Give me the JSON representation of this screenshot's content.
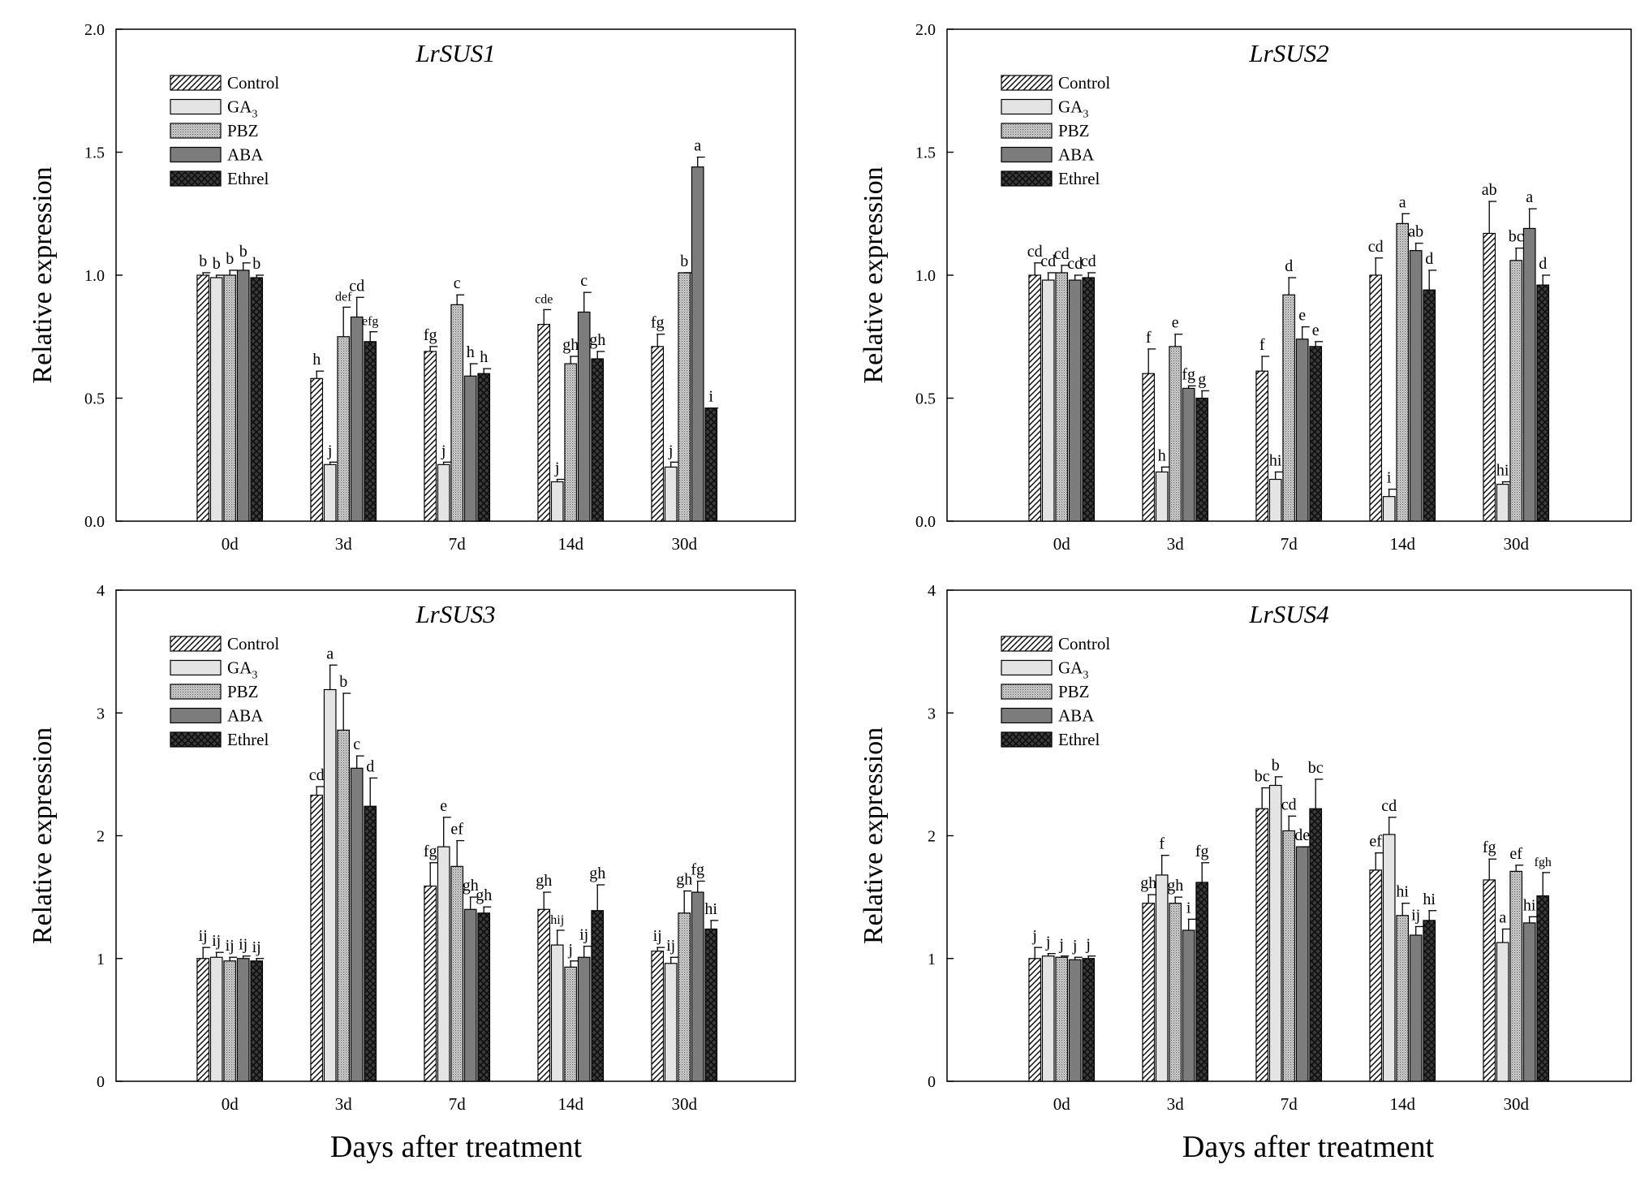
{
  "figure": {
    "xlabel": "Days after treatment",
    "ylabel": "Relative expression",
    "legend": [
      {
        "key": "control",
        "label": "Control",
        "sub": ""
      },
      {
        "key": "ga3",
        "label": "GA",
        "sub": "3"
      },
      {
        "key": "pbz",
        "label": "PBZ",
        "sub": ""
      },
      {
        "key": "aba",
        "label": "ABA",
        "sub": ""
      },
      {
        "key": "ethrel",
        "label": "Ethrel",
        "sub": ""
      }
    ]
  },
  "chart_data": [
    {
      "type": "bar",
      "title": "LrSUS1",
      "ylabel": "Relative expression",
      "xlabel": "Days after treatment",
      "ylim": [
        0,
        2.0
      ],
      "yticks": [
        "0.0",
        "0.5",
        "1.0",
        "1.5",
        "2.0"
      ],
      "categories": [
        "0d",
        "3d",
        "7d",
        "14d",
        "30d"
      ],
      "legend_position": "top-left",
      "series": [
        {
          "name": "Control",
          "values": [
            1.0,
            0.58,
            0.69,
            0.8,
            0.71
          ],
          "errors": [
            0.01,
            0.03,
            0.02,
            0.06,
            0.05
          ],
          "letters": [
            "b",
            "h",
            "fg",
            "cde",
            "fg"
          ]
        },
        {
          "name": "GA3",
          "values": [
            0.99,
            0.23,
            0.23,
            0.16,
            0.22
          ],
          "errors": [
            0.01,
            0.01,
            0.01,
            0.01,
            0.02
          ],
          "letters": [
            "b",
            "j",
            "j",
            "j",
            "j"
          ]
        },
        {
          "name": "PBZ",
          "values": [
            1.0,
            0.75,
            0.88,
            0.64,
            1.01
          ],
          "errors": [
            0.02,
            0.12,
            0.04,
            0.03,
            0.0
          ],
          "letters": [
            "b",
            "def",
            "c",
            "gh",
            "b"
          ]
        },
        {
          "name": "ABA",
          "values": [
            1.02,
            0.83,
            0.59,
            0.85,
            1.44
          ],
          "errors": [
            0.03,
            0.08,
            0.05,
            0.08,
            0.04
          ],
          "letters": [
            "b",
            "cd",
            "h",
            "c",
            "a"
          ]
        },
        {
          "name": "Ethrel",
          "values": [
            0.99,
            0.73,
            0.6,
            0.66,
            0.46
          ],
          "errors": [
            0.01,
            0.04,
            0.02,
            0.03,
            0.0
          ],
          "letters": [
            "b",
            "efg",
            "h",
            "gh",
            "i"
          ]
        }
      ]
    },
    {
      "type": "bar",
      "title": "LrSUS2",
      "ylabel": "Relative expression",
      "xlabel": "Days after treatment",
      "ylim": [
        0,
        2.0
      ],
      "yticks": [
        "0.0",
        "0.5",
        "1.0",
        "1.5",
        "2.0"
      ],
      "categories": [
        "0d",
        "3d",
        "7d",
        "14d",
        "30d"
      ],
      "legend_position": "top-left",
      "series": [
        {
          "name": "Control",
          "values": [
            1.0,
            0.6,
            0.61,
            1.0,
            1.17
          ],
          "errors": [
            0.05,
            0.1,
            0.06,
            0.07,
            0.13
          ],
          "letters": [
            "cd",
            "f",
            "f",
            "cd",
            "ab"
          ]
        },
        {
          "name": "GA3",
          "values": [
            0.98,
            0.2,
            0.17,
            0.1,
            0.15
          ],
          "errors": [
            0.03,
            0.02,
            0.03,
            0.03,
            0.01
          ],
          "letters": [
            "cd",
            "h",
            "hi",
            "i",
            "hi"
          ]
        },
        {
          "name": "PBZ",
          "values": [
            1.01,
            0.71,
            0.92,
            1.21,
            1.06
          ],
          "errors": [
            0.03,
            0.05,
            0.07,
            0.04,
            0.05
          ],
          "letters": [
            "cd",
            "e",
            "d",
            "a",
            "bc"
          ]
        },
        {
          "name": "ABA",
          "values": [
            0.98,
            0.54,
            0.74,
            1.1,
            1.19
          ],
          "errors": [
            0.02,
            0.01,
            0.05,
            0.03,
            0.08
          ],
          "letters": [
            "cd",
            "fg",
            "e",
            "ab",
            "a"
          ]
        },
        {
          "name": "Ethrel",
          "values": [
            0.99,
            0.5,
            0.71,
            0.94,
            0.96
          ],
          "errors": [
            0.02,
            0.03,
            0.02,
            0.08,
            0.04
          ],
          "letters": [
            "cd",
            "g",
            "e",
            "d",
            "d"
          ]
        }
      ]
    },
    {
      "type": "bar",
      "title": "LrSUS3",
      "ylabel": "Relative expression",
      "xlabel": "Days after treatment",
      "ylim": [
        0,
        4
      ],
      "yticks": [
        "0",
        "1",
        "2",
        "3",
        "4"
      ],
      "categories": [
        "0d",
        "3d",
        "7d",
        "14d",
        "30d"
      ],
      "legend_position": "top-left",
      "series": [
        {
          "name": "Control",
          "values": [
            1.0,
            2.33,
            1.59,
            1.4,
            1.06
          ],
          "errors": [
            0.09,
            0.07,
            0.19,
            0.14,
            0.03
          ],
          "letters": [
            "ij",
            "cd",
            "fg",
            "gh",
            "ij"
          ]
        },
        {
          "name": "GA3",
          "values": [
            1.01,
            3.19,
            1.91,
            1.11,
            0.96
          ],
          "errors": [
            0.04,
            0.2,
            0.24,
            0.12,
            0.05
          ],
          "letters": [
            "ij",
            "a",
            "e",
            "hij",
            "ij"
          ]
        },
        {
          "name": "PBZ",
          "values": [
            0.98,
            2.86,
            1.75,
            0.93,
            1.37
          ],
          "errors": [
            0.03,
            0.3,
            0.21,
            0.05,
            0.18
          ],
          "letters": [
            "ij",
            "b",
            "ef",
            "j",
            "gh"
          ]
        },
        {
          "name": "ABA",
          "values": [
            1.0,
            2.55,
            1.4,
            1.01,
            1.54
          ],
          "errors": [
            0.02,
            0.1,
            0.1,
            0.09,
            0.09
          ],
          "letters": [
            "ij",
            "c",
            "gh",
            "ij",
            "fg"
          ]
        },
        {
          "name": "Ethrel",
          "values": [
            0.98,
            2.24,
            1.37,
            1.39,
            1.24
          ],
          "errors": [
            0.02,
            0.23,
            0.05,
            0.21,
            0.07
          ],
          "letters": [
            "ij",
            "d",
            "gh",
            "gh",
            "hi"
          ]
        }
      ]
    },
    {
      "type": "bar",
      "title": "LrSUS4",
      "ylabel": "Relative expression",
      "xlabel": "Days after treatment",
      "ylim": [
        0,
        4
      ],
      "yticks": [
        "0",
        "1",
        "2",
        "3",
        "4"
      ],
      "categories": [
        "0d",
        "3d",
        "7d",
        "14d",
        "30d"
      ],
      "legend_position": "top-left",
      "series": [
        {
          "name": "Control",
          "values": [
            1.0,
            1.45,
            2.22,
            1.72,
            1.64
          ],
          "errors": [
            0.09,
            0.07,
            0.17,
            0.14,
            0.17
          ],
          "letters": [
            "j",
            "gh",
            "bc",
            "ef",
            "fg"
          ]
        },
        {
          "name": "GA3",
          "values": [
            1.02,
            1.68,
            2.41,
            2.01,
            1.13
          ],
          "errors": [
            0.02,
            0.16,
            0.07,
            0.14,
            0.11
          ],
          "letters": [
            "j",
            "f",
            "b",
            "cd",
            "a"
          ]
        },
        {
          "name": "PBZ",
          "values": [
            1.01,
            1.45,
            2.04,
            1.35,
            1.71
          ],
          "errors": [
            0.01,
            0.05,
            0.12,
            0.1,
            0.05
          ],
          "letters": [
            "j",
            "gh",
            "cd",
            "hi",
            "ef"
          ]
        },
        {
          "name": "ABA",
          "values": [
            0.99,
            1.23,
            1.91,
            1.19,
            1.29
          ],
          "errors": [
            0.02,
            0.09,
            0.0,
            0.07,
            0.05
          ],
          "letters": [
            "j",
            "i",
            "de",
            "ij",
            "hi"
          ]
        },
        {
          "name": "Ethrel",
          "values": [
            1.0,
            1.62,
            2.22,
            1.31,
            1.51
          ],
          "errors": [
            0.02,
            0.16,
            0.24,
            0.08,
            0.19
          ],
          "letters": [
            "j",
            "fg",
            "bc",
            "hi",
            "fgh"
          ]
        }
      ]
    }
  ]
}
